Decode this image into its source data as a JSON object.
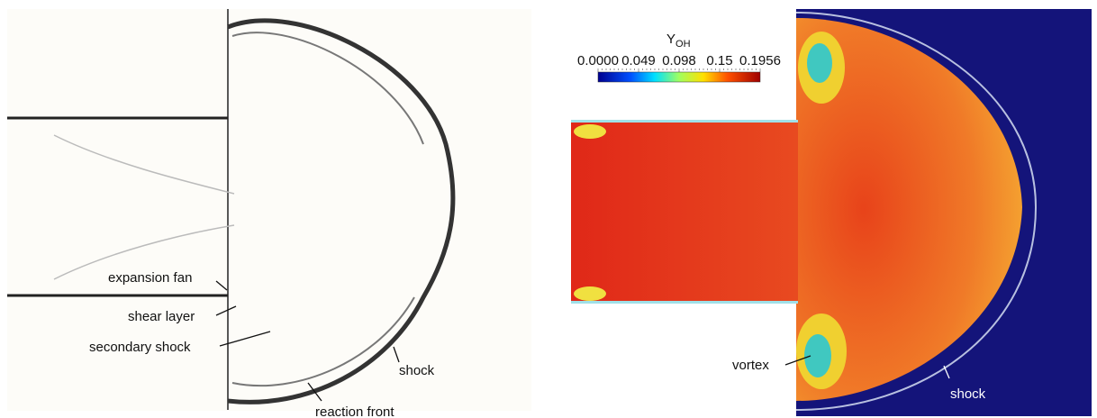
{
  "left_panel": {
    "annotations": {
      "expansion_fan": "expansion fan",
      "shear_layer": "shear layer",
      "secondary_shock": "secondary shock",
      "shock": "shock",
      "reaction_front": "reaction front"
    }
  },
  "right_panel": {
    "colorbar": {
      "title": "Y",
      "title_subscript": "OH",
      "ticks": [
        "0.0000",
        "0.049",
        "0.098",
        "0.15",
        "0.1956"
      ]
    },
    "annotations": {
      "vortex": "vortex",
      "shock": "shock"
    }
  }
}
